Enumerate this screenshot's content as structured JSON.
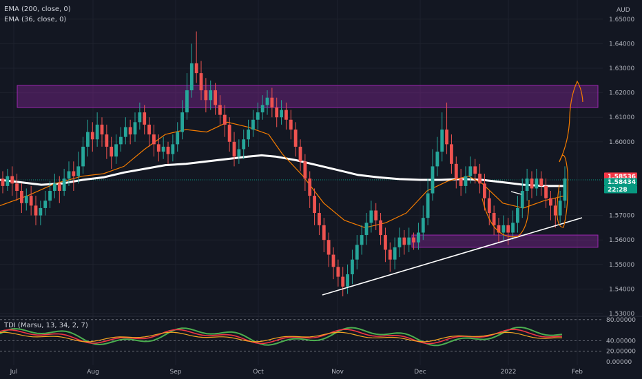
{
  "chart_data": {
    "type": "candlestick",
    "currency": "AUD",
    "legend": [
      "EMA (200, close, 0)",
      "EMA (36, close, 0)",
      "TDI (Marsu, 13, 34, 2, 7)"
    ],
    "x_ticks": [
      "Jul",
      "Aug",
      "Sep",
      "Oct",
      "Nov",
      "Dec",
      "2022",
      "Feb"
    ],
    "y_ticks": [
      "1.65000",
      "1.64000",
      "1.63000",
      "1.62000",
      "1.61000",
      "1.60000",
      "1.57000",
      "1.56000",
      "1.55000",
      "1.54000",
      "1.53000"
    ],
    "ylim": [
      1.53,
      1.655
    ],
    "price_tags": [
      {
        "label": "1.58536",
        "color": "#f23645"
      },
      {
        "label": "1.58434",
        "color": "#089981"
      },
      {
        "label": "22:28",
        "color": "#089981"
      }
    ],
    "indicator_ticks": [
      "80.00000",
      "40.00000",
      "20.00000",
      "0.00000"
    ],
    "indicator_ylim": [
      0,
      85
    ],
    "resistance_zone": [
      1.614,
      1.623
    ],
    "support_zone": [
      1.557,
      1.562
    ],
    "ema200": [
      [
        0,
        1.5845
      ],
      [
        30,
        1.5835
      ],
      [
        60,
        1.5825
      ],
      [
        90,
        1.583
      ],
      [
        120,
        1.5845
      ],
      [
        150,
        1.5855
      ],
      [
        180,
        1.5875
      ],
      [
        210,
        1.589
      ],
      [
        240,
        1.5905
      ],
      [
        270,
        1.591
      ],
      [
        300,
        1.592
      ],
      [
        330,
        1.593
      ],
      [
        360,
        1.594
      ],
      [
        380,
        1.5945
      ],
      [
        400,
        1.594
      ],
      [
        430,
        1.5925
      ],
      [
        460,
        1.5905
      ],
      [
        490,
        1.5885
      ],
      [
        520,
        1.5865
      ],
      [
        550,
        1.5855
      ],
      [
        580,
        1.5848
      ],
      [
        610,
        1.5845
      ],
      [
        640,
        1.5845
      ],
      [
        670,
        1.5848
      ],
      [
        700,
        1.5845
      ],
      [
        730,
        1.5835
      ],
      [
        760,
        1.5825
      ],
      [
        790,
        1.582
      ],
      [
        820,
        1.582
      ]
    ],
    "ema36": [
      [
        0,
        1.574
      ],
      [
        40,
        1.578
      ],
      [
        80,
        1.583
      ],
      [
        120,
        1.586
      ],
      [
        150,
        1.587
      ],
      [
        180,
        1.59
      ],
      [
        210,
        1.597
      ],
      [
        240,
        1.603
      ],
      [
        270,
        1.605
      ],
      [
        300,
        1.604
      ],
      [
        330,
        1.608
      ],
      [
        360,
        1.606
      ],
      [
        390,
        1.603
      ],
      [
        410,
        1.595
      ],
      [
        440,
        1.586
      ],
      [
        470,
        1.575
      ],
      [
        500,
        1.568
      ],
      [
        530,
        1.565
      ],
      [
        560,
        1.567
      ],
      [
        590,
        1.571
      ],
      [
        620,
        1.58
      ],
      [
        650,
        1.584
      ],
      [
        680,
        1.586
      ],
      [
        700,
        1.583
      ],
      [
        730,
        1.575
      ],
      [
        760,
        1.573
      ],
      [
        790,
        1.576
      ],
      [
        820,
        1.578
      ]
    ],
    "candles": [
      [
        1.585,
        1.582,
        1.588,
        1.579
      ],
      [
        1.582,
        1.586,
        1.589,
        1.58
      ],
      [
        1.586,
        1.583,
        1.59,
        1.578
      ],
      [
        1.583,
        1.58,
        1.587,
        1.576
      ],
      [
        1.58,
        1.575,
        1.583,
        1.571
      ],
      [
        1.575,
        1.578,
        1.581,
        1.572
      ],
      [
        1.578,
        1.574,
        1.582,
        1.57
      ],
      [
        1.574,
        1.57,
        1.578,
        1.566
      ],
      [
        1.57,
        1.573,
        1.576,
        1.566
      ],
      [
        1.573,
        1.576,
        1.58,
        1.57
      ],
      [
        1.576,
        1.58,
        1.584,
        1.573
      ],
      [
        1.58,
        1.583,
        1.587,
        1.577
      ],
      [
        1.583,
        1.58,
        1.586,
        1.575
      ],
      [
        1.58,
        1.585,
        1.589,
        1.578
      ],
      [
        1.585,
        1.588,
        1.592,
        1.582
      ],
      [
        1.588,
        1.586,
        1.592,
        1.58
      ],
      [
        1.586,
        1.59,
        1.596,
        1.583
      ],
      [
        1.59,
        1.598,
        1.602,
        1.587
      ],
      [
        1.598,
        1.604,
        1.609,
        1.594
      ],
      [
        1.604,
        1.601,
        1.608,
        1.596
      ],
      [
        1.601,
        1.607,
        1.612,
        1.598
      ],
      [
        1.607,
        1.603,
        1.61,
        1.598
      ],
      [
        1.603,
        1.598,
        1.607,
        1.593
      ],
      [
        1.598,
        1.594,
        1.602,
        1.589
      ],
      [
        1.594,
        1.599,
        1.603,
        1.591
      ],
      [
        1.599,
        1.602,
        1.606,
        1.596
      ],
      [
        1.602,
        1.606,
        1.61,
        1.599
      ],
      [
        1.606,
        1.603,
        1.609,
        1.599
      ],
      [
        1.603,
        1.608,
        1.612,
        1.6
      ],
      [
        1.608,
        1.612,
        1.616,
        1.605
      ],
      [
        1.612,
        1.607,
        1.615,
        1.603
      ],
      [
        1.607,
        1.603,
        1.61,
        1.598
      ],
      [
        1.603,
        1.599,
        1.607,
        1.594
      ],
      [
        1.599,
        1.596,
        1.603,
        1.592
      ],
      [
        1.596,
        1.598,
        1.602,
        1.593
      ],
      [
        1.598,
        1.595,
        1.6,
        1.591
      ],
      [
        1.595,
        1.599,
        1.603,
        1.592
      ],
      [
        1.599,
        1.604,
        1.608,
        1.596
      ],
      [
        1.604,
        1.612,
        1.617,
        1.601
      ],
      [
        1.612,
        1.621,
        1.628,
        1.609
      ],
      [
        1.621,
        1.632,
        1.64,
        1.618
      ],
      [
        1.632,
        1.628,
        1.645,
        1.624
      ],
      [
        1.628,
        1.621,
        1.633,
        1.617
      ],
      [
        1.621,
        1.617,
        1.626,
        1.612
      ],
      [
        1.617,
        1.621,
        1.625,
        1.613
      ],
      [
        1.621,
        1.615,
        1.624,
        1.611
      ],
      [
        1.615,
        1.611,
        1.619,
        1.607
      ],
      [
        1.611,
        1.607,
        1.615,
        1.602
      ],
      [
        1.607,
        1.6,
        1.61,
        1.596
      ],
      [
        1.6,
        1.594,
        1.604,
        1.59
      ],
      [
        1.594,
        1.597,
        1.601,
        1.591
      ],
      [
        1.597,
        1.601,
        1.605,
        1.593
      ],
      [
        1.601,
        1.605,
        1.609,
        1.598
      ],
      [
        1.605,
        1.609,
        1.613,
        1.602
      ],
      [
        1.609,
        1.612,
        1.616,
        1.605
      ],
      [
        1.612,
        1.615,
        1.619,
        1.609
      ],
      [
        1.615,
        1.618,
        1.621,
        1.611
      ],
      [
        1.618,
        1.614,
        1.622,
        1.61
      ],
      [
        1.614,
        1.61,
        1.618,
        1.606
      ],
      [
        1.61,
        1.613,
        1.617,
        1.607
      ],
      [
        1.613,
        1.609,
        1.616,
        1.605
      ],
      [
        1.609,
        1.605,
        1.613,
        1.601
      ],
      [
        1.605,
        1.598,
        1.608,
        1.594
      ],
      [
        1.598,
        1.592,
        1.601,
        1.588
      ],
      [
        1.592,
        1.585,
        1.595,
        1.58
      ],
      [
        1.585,
        1.578,
        1.588,
        1.573
      ],
      [
        1.578,
        1.571,
        1.581,
        1.566
      ],
      [
        1.571,
        1.566,
        1.575,
        1.562
      ],
      [
        1.566,
        1.56,
        1.569,
        1.555
      ],
      [
        1.56,
        1.554,
        1.563,
        1.549
      ],
      [
        1.554,
        1.549,
        1.557,
        1.544
      ],
      [
        1.549,
        1.545,
        1.552,
        1.541
      ],
      [
        1.545,
        1.541,
        1.549,
        1.537
      ],
      [
        1.541,
        1.546,
        1.55,
        1.538
      ],
      [
        1.546,
        1.552,
        1.556,
        1.542
      ],
      [
        1.552,
        1.558,
        1.562,
        1.548
      ],
      [
        1.558,
        1.562,
        1.566,
        1.554
      ],
      [
        1.562,
        1.567,
        1.571,
        1.558
      ],
      [
        1.567,
        1.572,
        1.576,
        1.563
      ],
      [
        1.572,
        1.568,
        1.575,
        1.564
      ],
      [
        1.568,
        1.562,
        1.571,
        1.558
      ],
      [
        1.562,
        1.556,
        1.565,
        1.551
      ],
      [
        1.556,
        1.552,
        1.559,
        1.547
      ],
      [
        1.552,
        1.557,
        1.561,
        1.548
      ],
      [
        1.557,
        1.561,
        1.565,
        1.553
      ],
      [
        1.561,
        1.558,
        1.564,
        1.554
      ],
      [
        1.558,
        1.561,
        1.565,
        1.555
      ],
      [
        1.561,
        1.559,
        1.563,
        1.556
      ],
      [
        1.559,
        1.563,
        1.567,
        1.556
      ],
      [
        1.563,
        1.569,
        1.574,
        1.56
      ],
      [
        1.569,
        1.579,
        1.585,
        1.566
      ],
      [
        1.579,
        1.59,
        1.597,
        1.576
      ],
      [
        1.59,
        1.596,
        1.602,
        1.586
      ],
      [
        1.596,
        1.605,
        1.612,
        1.592
      ],
      [
        1.605,
        1.599,
        1.616,
        1.595
      ],
      [
        1.599,
        1.591,
        1.603,
        1.587
      ],
      [
        1.591,
        1.585,
        1.594,
        1.581
      ],
      [
        1.585,
        1.582,
        1.589,
        1.578
      ],
      [
        1.582,
        1.586,
        1.59,
        1.579
      ],
      [
        1.586,
        1.59,
        1.594,
        1.583
      ],
      [
        1.59,
        1.587,
        1.593,
        1.583
      ],
      [
        1.587,
        1.583,
        1.591,
        1.579
      ],
      [
        1.583,
        1.577,
        1.587,
        1.572
      ],
      [
        1.577,
        1.571,
        1.58,
        1.566
      ],
      [
        1.571,
        1.566,
        1.574,
        1.562
      ],
      [
        1.566,
        1.563,
        1.569,
        1.559
      ],
      [
        1.563,
        1.566,
        1.57,
        1.56
      ],
      [
        1.566,
        1.563,
        1.569,
        1.558
      ],
      [
        1.563,
        1.567,
        1.572,
        1.56
      ],
      [
        1.567,
        1.573,
        1.578,
        1.563
      ],
      [
        1.573,
        1.58,
        1.585,
        1.569
      ],
      [
        1.58,
        1.585,
        1.589,
        1.576
      ],
      [
        1.585,
        1.581,
        1.588,
        1.577
      ],
      [
        1.581,
        1.585,
        1.589,
        1.578
      ],
      [
        1.585,
        1.582,
        1.588,
        1.578
      ],
      [
        1.582,
        1.577,
        1.585,
        1.573
      ],
      [
        1.577,
        1.574,
        1.58,
        1.568
      ],
      [
        1.574,
        1.57,
        1.577,
        1.565
      ],
      [
        1.57,
        1.576,
        1.58,
        1.567
      ],
      [
        1.576,
        1.585,
        1.59,
        1.573
      ]
    ]
  }
}
